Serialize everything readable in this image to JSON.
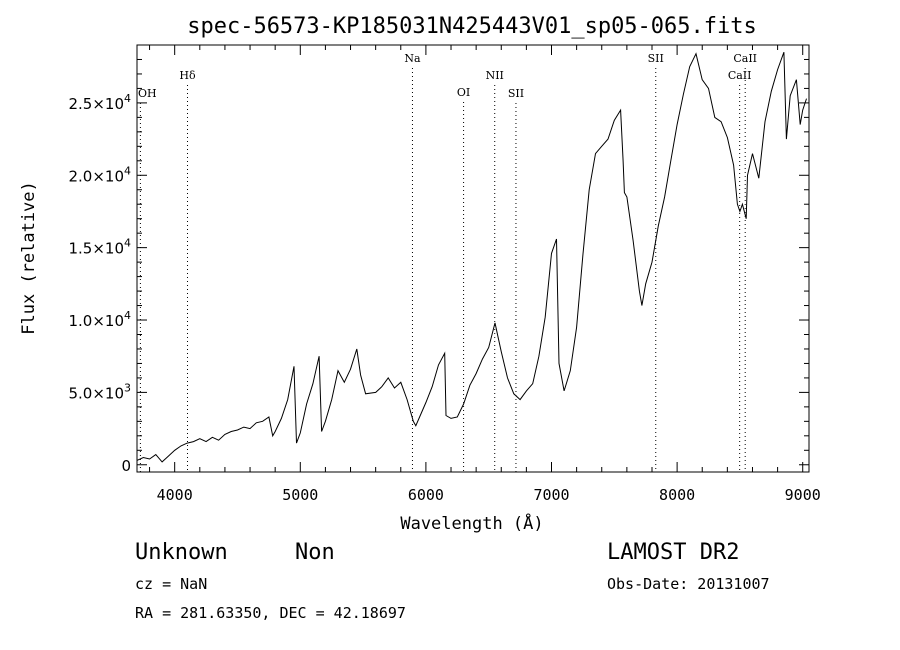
{
  "chart_data": {
    "type": "line",
    "title": "spec-56573-KP185031N425443V01_sp05-065.fits",
    "xlabel": "Wavelength (Å)",
    "ylabel": "Flux (relative)",
    "xlim": [
      3700,
      9050
    ],
    "ylim": [
      -500,
      29000
    ],
    "x_ticks": [
      4000,
      5000,
      6000,
      7000,
      8000,
      9000
    ],
    "x_tick_labels": [
      "4000",
      "5000",
      "6000",
      "7000",
      "8000",
      "9000"
    ],
    "y_ticks": [
      0,
      5000,
      10000,
      15000,
      20000,
      25000
    ],
    "y_tick_labels": [
      {
        "mant": "0",
        "exp": ""
      },
      {
        "mant": "5.0×10",
        "exp": "3"
      },
      {
        "mant": "1.0×10",
        "exp": "4"
      },
      {
        "mant": "1.5×10",
        "exp": "4"
      },
      {
        "mant": "2.0×10",
        "exp": "4"
      },
      {
        "mant": "2.5×10",
        "exp": "4"
      }
    ],
    "grid": false,
    "line_color": "#000000",
    "lines": [
      {
        "label": "OH",
        "x": 3727
      },
      {
        "label": "Hδ",
        "x": 4102
      },
      {
        "label": "Na",
        "x": 5893
      },
      {
        "label": "OI",
        "x": 6300
      },
      {
        "label": "NII",
        "x": 6548
      },
      {
        "label": "SII",
        "x": 6717
      },
      {
        "label": "SII",
        "x": 7830
      },
      {
        "label": "CaII",
        "x": 8498
      },
      {
        "label": "CaII",
        "x": 8542
      }
    ],
    "series": [
      {
        "values": [
          [
            3700,
            300
          ],
          [
            3750,
            500
          ],
          [
            3800,
            400
          ],
          [
            3850,
            700
          ],
          [
            3900,
            200
          ],
          [
            3950,
            600
          ],
          [
            4000,
            1000
          ],
          [
            4050,
            1300
          ],
          [
            4100,
            1500
          ],
          [
            4150,
            1600
          ],
          [
            4200,
            1800
          ],
          [
            4250,
            1600
          ],
          [
            4300,
            1900
          ],
          [
            4350,
            1700
          ],
          [
            4400,
            2100
          ],
          [
            4450,
            2300
          ],
          [
            4500,
            2400
          ],
          [
            4550,
            2600
          ],
          [
            4600,
            2500
          ],
          [
            4650,
            2900
          ],
          [
            4700,
            3000
          ],
          [
            4750,
            3300
          ],
          [
            4780,
            2000
          ],
          [
            4800,
            2300
          ],
          [
            4850,
            3200
          ],
          [
            4900,
            4500
          ],
          [
            4950,
            6800
          ],
          [
            4970,
            1500
          ],
          [
            5000,
            2200
          ],
          [
            5050,
            4200
          ],
          [
            5100,
            5600
          ],
          [
            5150,
            7500
          ],
          [
            5170,
            2300
          ],
          [
            5200,
            3000
          ],
          [
            5250,
            4500
          ],
          [
            5300,
            6500
          ],
          [
            5350,
            5700
          ],
          [
            5400,
            6600
          ],
          [
            5450,
            8000
          ],
          [
            5480,
            6200
          ],
          [
            5520,
            4900
          ],
          [
            5600,
            5000
          ],
          [
            5650,
            5400
          ],
          [
            5700,
            6000
          ],
          [
            5750,
            5300
          ],
          [
            5800,
            5700
          ],
          [
            5850,
            4500
          ],
          [
            5900,
            3000
          ],
          [
            5920,
            2700
          ],
          [
            5950,
            3300
          ],
          [
            6000,
            4300
          ],
          [
            6050,
            5400
          ],
          [
            6100,
            6900
          ],
          [
            6150,
            7700
          ],
          [
            6160,
            3400
          ],
          [
            6200,
            3200
          ],
          [
            6250,
            3300
          ],
          [
            6300,
            4200
          ],
          [
            6350,
            5500
          ],
          [
            6400,
            6300
          ],
          [
            6450,
            7300
          ],
          [
            6500,
            8100
          ],
          [
            6550,
            9800
          ],
          [
            6570,
            9000
          ],
          [
            6600,
            7800
          ],
          [
            6650,
            6000
          ],
          [
            6700,
            4900
          ],
          [
            6750,
            4500
          ],
          [
            6800,
            5100
          ],
          [
            6850,
            5600
          ],
          [
            6900,
            7500
          ],
          [
            6950,
            10200
          ],
          [
            7000,
            14600
          ],
          [
            7040,
            15600
          ],
          [
            7060,
            7000
          ],
          [
            7100,
            5100
          ],
          [
            7150,
            6500
          ],
          [
            7200,
            9500
          ],
          [
            7250,
            14500
          ],
          [
            7300,
            19000
          ],
          [
            7350,
            21500
          ],
          [
            7400,
            22000
          ],
          [
            7450,
            22500
          ],
          [
            7500,
            23800
          ],
          [
            7550,
            24500
          ],
          [
            7570,
            21000
          ],
          [
            7580,
            18800
          ],
          [
            7600,
            18500
          ],
          [
            7650,
            15500
          ],
          [
            7700,
            12000
          ],
          [
            7720,
            11000
          ],
          [
            7750,
            12500
          ],
          [
            7800,
            14000
          ],
          [
            7850,
            16500
          ],
          [
            7900,
            18500
          ],
          [
            7950,
            21000
          ],
          [
            8000,
            23500
          ],
          [
            8050,
            25600
          ],
          [
            8100,
            27500
          ],
          [
            8150,
            28400
          ],
          [
            8200,
            26600
          ],
          [
            8250,
            26000
          ],
          [
            8300,
            24000
          ],
          [
            8350,
            23700
          ],
          [
            8400,
            22600
          ],
          [
            8450,
            20700
          ],
          [
            8480,
            18000
          ],
          [
            8500,
            17500
          ],
          [
            8520,
            18000
          ],
          [
            8550,
            17000
          ],
          [
            8560,
            20000
          ],
          [
            8600,
            21500
          ],
          [
            8650,
            19800
          ],
          [
            8700,
            23700
          ],
          [
            8750,
            25800
          ],
          [
            8800,
            27300
          ],
          [
            8850,
            28500
          ],
          [
            8870,
            22500
          ],
          [
            8900,
            25500
          ],
          [
            8950,
            26600
          ],
          [
            8980,
            23500
          ],
          [
            9000,
            24500
          ],
          [
            9030,
            25300
          ]
        ]
      }
    ]
  },
  "info": {
    "class": "Unknown",
    "subclass": "Non",
    "survey": "LAMOST DR2",
    "cz": "cz = NaN",
    "obs_date": "Obs-Date: 20131007",
    "coords": "RA = 281.63350, DEC =  42.18697"
  }
}
